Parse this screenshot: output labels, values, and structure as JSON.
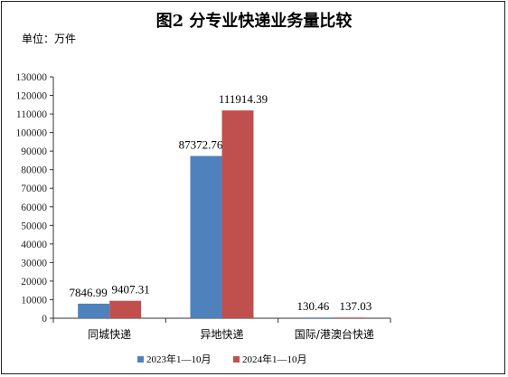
{
  "chart_data": {
    "type": "bar",
    "title": "图2  分专业快递业务量比较",
    "unit_label": "单位：万件",
    "categories": [
      "同城快递",
      "异地快递",
      "国际/港澳台快递"
    ],
    "series": [
      {
        "name": "2023年1—10月",
        "color": "#4F81BD",
        "values": [
          7846.99,
          87372.76,
          130.46
        ],
        "labels": [
          "7846.99",
          "87372.76",
          "130.46"
        ]
      },
      {
        "name": "2024年1—10月",
        "color": "#C0504D",
        "values": [
          9407.31,
          111914.39,
          137.03
        ],
        "labels": [
          "9407.31",
          "111914.39",
          "137.03"
        ]
      }
    ],
    "ylim": [
      0,
      130000
    ],
    "yticks": [
      0,
      10000,
      20000,
      30000,
      40000,
      50000,
      60000,
      70000,
      80000,
      90000,
      100000,
      110000,
      120000,
      130000
    ],
    "grid": false,
    "legend": "bottom"
  }
}
